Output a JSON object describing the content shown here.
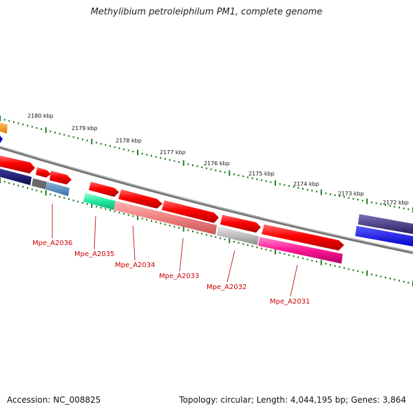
{
  "title": "Methylibium petroleiphilum PM1, complete genome",
  "footer": {
    "accession": "Accession: NC_008825",
    "summary": "Topology: circular; Length: 4,044,195 bp; Genes: 3,864"
  },
  "colors": {
    "backbone": "#8a8a8a",
    "scale_tick": "#1f7a1f",
    "gene_label": "#cc0000",
    "leader": "#cc2222"
  },
  "scale_ticks": [
    "2180 kbp",
    "2179 kbp",
    "2178 kbp",
    "2177 kbp",
    "2176 kbp",
    "2175 kbp",
    "2174 kbp",
    "2173 kbp",
    "2172 kbp"
  ],
  "gene_labels": [
    "Mpe_A2036",
    "Mpe_A2035",
    "Mpe_A2034",
    "Mpe_A2033",
    "Mpe_A2032",
    "Mpe_A2031"
  ]
}
